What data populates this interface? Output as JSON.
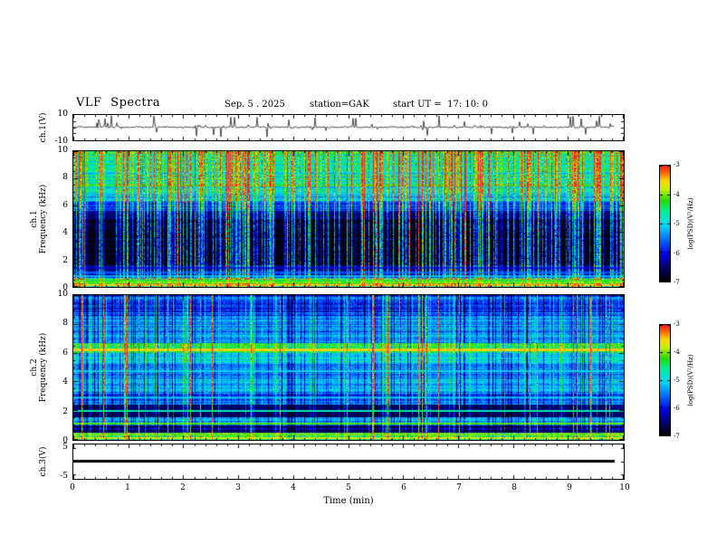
{
  "header": {
    "title": "VLF Spectra",
    "date": "Sep. 5 . 2025",
    "station": "station=GAK",
    "start_ut": "start UT =  17: 10: 0"
  },
  "chart_data": {
    "type": "heatmap",
    "subtype": "vlf-multipanel-spectrogram",
    "title": "VLF Spectra",
    "x_axis": {
      "label": "Time (min)",
      "range": [
        0,
        10
      ],
      "major_ticks": [
        0,
        1,
        2,
        3,
        4,
        5,
        6,
        7,
        8,
        9,
        10
      ],
      "minor_tick_step": 0.2
    },
    "colorbar": {
      "label": "log(PSD)(V²/Hz)",
      "range": [
        -7,
        -3
      ],
      "ticks": [
        -3,
        -4,
        -5,
        -6,
        -7
      ],
      "stops": [
        {
          "v": -7.0,
          "c": "#000006"
        },
        {
          "v": -6.6,
          "c": "#00005a"
        },
        {
          "v": -6.1,
          "c": "#0000dc"
        },
        {
          "v": -5.6,
          "c": "#0064ff"
        },
        {
          "v": -5.1,
          "c": "#00d2ff"
        },
        {
          "v": -4.6,
          "c": "#00f0a0"
        },
        {
          "v": -4.2,
          "c": "#28dc00"
        },
        {
          "v": -3.8,
          "c": "#c8f000"
        },
        {
          "v": -3.5,
          "c": "#ffd200"
        },
        {
          "v": -3.25,
          "c": "#ff6e00"
        },
        {
          "v": -3.0,
          "c": "#ff1e1e"
        }
      ]
    },
    "panels": [
      {
        "id": "ch1_waveform",
        "kind": "line",
        "ylabel": "ch.1(V)",
        "ylim": [
          -10,
          10
        ],
        "yticks": [
          10,
          -10
        ],
        "t_end_min": 9.83,
        "seed": 7,
        "signal": {
          "baseline": 0,
          "noise_amp": 0.45,
          "spike_density": 0.085,
          "spike_amp_min": 1.2,
          "spike_amp_max": 9.5,
          "up_fraction": 0.65
        }
      },
      {
        "id": "ch1_spectrogram",
        "kind": "spectrogram",
        "ylabel_lines": [
          "ch.1",
          "Frequency (kHz)"
        ],
        "f_range": [
          0,
          10
        ],
        "yticks": [
          0,
          2,
          4,
          6,
          8,
          10
        ],
        "seed": 11,
        "bands": [
          {
            "f": [
              9.0,
              10.0
            ],
            "base": -4.55,
            "noise": 0.75
          },
          {
            "f": [
              7.0,
              9.0
            ],
            "base": -4.75,
            "noise": 0.7
          },
          {
            "f": [
              6.3,
              7.0
            ],
            "base": -5.2,
            "noise": 0.6
          },
          {
            "f": [
              5.6,
              6.3
            ],
            "base": -5.9,
            "noise": 0.5
          },
          {
            "f": [
              5.0,
              5.6
            ],
            "base": -6.5,
            "noise": 0.4
          },
          {
            "f": [
              1.6,
              5.0
            ],
            "base": -6.9,
            "noise": 0.3
          },
          {
            "f": [
              1.15,
              1.6
            ],
            "base": -6.55,
            "noise": 0.4
          },
          {
            "f": [
              0.62,
              1.15
            ],
            "base": -6.1,
            "noise": 0.6
          },
          {
            "f": [
              0.0,
              0.62
            ],
            "base": -4.6,
            "noise": 1.1
          }
        ],
        "h_lines": [
          {
            "f": 0.1,
            "value": -3.6,
            "w": 0.09
          },
          {
            "f": 0.28,
            "value": -4.1,
            "w": 0.07
          },
          {
            "f": 0.46,
            "value": -4.4,
            "w": 0.07
          },
          {
            "f": 0.8,
            "value": -5.3,
            "w": 0.07
          },
          {
            "f": 1.05,
            "value": -5.7,
            "w": 0.06
          },
          {
            "f": 1.35,
            "value": -6.2,
            "w": 0.06
          }
        ],
        "streaks": [
          {
            "density": 0.4,
            "min": 0.5,
            "max": 2.2
          },
          {
            "density": 0.06,
            "min": 2.2,
            "max": 3.4
          }
        ]
      },
      {
        "id": "ch2_spectrogram",
        "kind": "spectrogram",
        "ylabel_lines": [
          "ch.2",
          "Frequency (kHz)"
        ],
        "f_range": [
          0,
          10
        ],
        "yticks": [
          0,
          2,
          4,
          6,
          8,
          10
        ],
        "seed": 23,
        "bands": [
          {
            "f": [
              8.6,
              10.0
            ],
            "base": -5.7,
            "noise": 0.55
          },
          {
            "f": [
              6.7,
              8.6
            ],
            "base": -5.35,
            "noise": 0.55
          },
          {
            "f": [
              6.0,
              6.7
            ],
            "base": -4.35,
            "noise": 0.45
          },
          {
            "f": [
              5.2,
              6.0
            ],
            "base": -5.1,
            "noise": 0.5
          },
          {
            "f": [
              4.3,
              5.2
            ],
            "base": -5.45,
            "noise": 0.5
          },
          {
            "f": [
              3.3,
              4.3
            ],
            "base": -5.2,
            "noise": 0.5
          },
          {
            "f": [
              2.4,
              3.3
            ],
            "base": -5.6,
            "noise": 0.5
          },
          {
            "f": [
              1.55,
              2.4
            ],
            "base": -6.55,
            "noise": 0.35
          },
          {
            "f": [
              1.0,
              1.55
            ],
            "base": -5.3,
            "noise": 0.55
          },
          {
            "f": [
              0.5,
              1.0
            ],
            "base": -6.4,
            "noise": 0.4
          },
          {
            "f": [
              0.0,
              0.5
            ],
            "base": -4.5,
            "noise": 1.0
          }
        ],
        "h_lines": [
          {
            "f": 6.25,
            "value": -3.55,
            "w": 0.12
          },
          {
            "f": 4.75,
            "value": -5.0,
            "w": 0.07
          },
          {
            "f": 2.95,
            "value": -5.2,
            "w": 0.07
          },
          {
            "f": 2.0,
            "value": -4.7,
            "w": 0.08
          },
          {
            "f": 1.08,
            "value": -4.1,
            "w": 0.08
          },
          {
            "f": 0.32,
            "value": -4.0,
            "w": 0.07
          },
          {
            "f": 0.1,
            "value": -3.7,
            "w": 0.09
          }
        ],
        "streaks": [
          {
            "density": 0.45,
            "min": -1.2,
            "max": 0.9
          },
          {
            "density": 0.05,
            "min": 1.6,
            "max": 2.6
          }
        ]
      },
      {
        "id": "ch3_waveform",
        "kind": "flatline",
        "ylabel": "ch.3(V)",
        "ylim": [
          -6.25,
          6.25
        ],
        "yticks": [
          5,
          -5
        ],
        "value": 0,
        "t_end_min": 9.83,
        "line_width": 3
      }
    ]
  }
}
